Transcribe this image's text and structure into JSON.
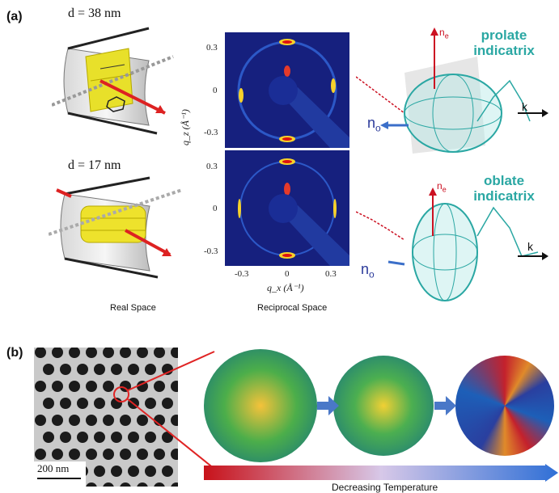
{
  "panel_a": {
    "label": "(a)",
    "top_label": "d = 38 nm",
    "bottom_label": "d = 17 nm",
    "real_space_caption": "Real Space",
    "reciprocal_space_caption": "Reciprocal Space",
    "qz_label": "q_z (Å⁻¹)",
    "qx_label": "q_x (Å⁻¹)",
    "qz_ticks": [
      "0.3",
      "0",
      "-0.3"
    ],
    "qx_ticks": [
      "-0.3",
      "0",
      "0.3"
    ],
    "prolate_label_line1": "prolate",
    "prolate_label_line2": "indicatrix",
    "oblate_label_line1": "oblate",
    "oblate_label_line2": "indicatrix",
    "n_e": "n",
    "n_e_sub": "e",
    "n_o": "n",
    "n_o_sub": "o",
    "k": "k"
  },
  "panel_b": {
    "label": "(b)",
    "scale_bar": "200 nm",
    "temperature_caption": "Decreasing Temperature"
  },
  "colors": {
    "indicatrix": "#2aa7a3",
    "arrow_red": "#cc1f1f",
    "arrow_blue": "#3b6fc9",
    "diffraction_bg": "#16207e",
    "gradient_start": "#c8121a",
    "gradient_end": "#2f6fd6"
  }
}
